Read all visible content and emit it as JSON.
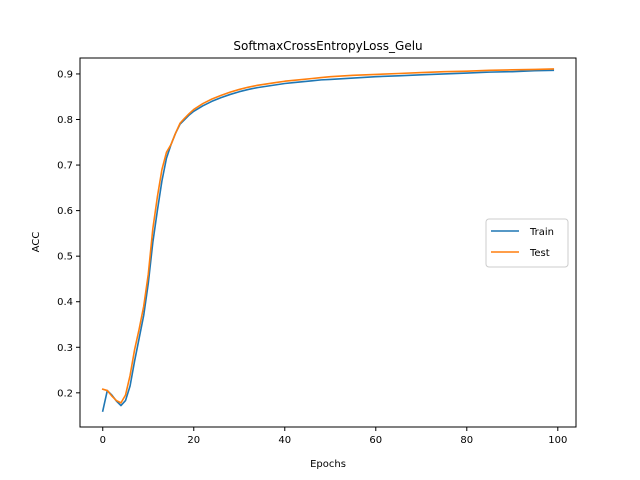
{
  "chart_data": {
    "type": "line",
    "title": "SoftmaxCrossEntropyLoss_Gelu",
    "xlabel": "Epochs",
    "ylabel": "ACC",
    "xlim": [
      -5,
      104
    ],
    "ylim": [
      0.125,
      0.935
    ],
    "xticks": [
      0,
      20,
      40,
      60,
      80,
      100
    ],
    "yticks": [
      0.2,
      0.3,
      0.4,
      0.5,
      0.6,
      0.7,
      0.8,
      0.9
    ],
    "legend_position": "center-right",
    "grid": false,
    "series": [
      {
        "name": "Train",
        "color": "#1f77b4",
        "x": [
          0,
          1,
          2,
          3,
          4,
          5,
          6,
          7,
          8,
          9,
          10,
          11,
          12,
          13,
          14,
          15,
          16,
          17,
          18,
          19,
          20,
          22,
          24,
          26,
          28,
          30,
          32,
          34,
          36,
          38,
          40,
          42,
          44,
          46,
          48,
          50,
          55,
          60,
          65,
          70,
          75,
          80,
          85,
          90,
          95,
          99
        ],
        "values": [
          0.16,
          0.205,
          0.195,
          0.182,
          0.172,
          0.183,
          0.215,
          0.27,
          0.32,
          0.37,
          0.44,
          0.53,
          0.6,
          0.665,
          0.715,
          0.745,
          0.77,
          0.79,
          0.8,
          0.81,
          0.818,
          0.83,
          0.84,
          0.848,
          0.855,
          0.861,
          0.866,
          0.87,
          0.873,
          0.876,
          0.879,
          0.881,
          0.883,
          0.885,
          0.887,
          0.888,
          0.891,
          0.894,
          0.896,
          0.898,
          0.9,
          0.902,
          0.904,
          0.905,
          0.907,
          0.908
        ]
      },
      {
        "name": "Test",
        "color": "#ff7f0e",
        "x": [
          0,
          1,
          2,
          3,
          4,
          5,
          6,
          7,
          8,
          9,
          10,
          11,
          12,
          13,
          14,
          15,
          16,
          17,
          18,
          19,
          20,
          22,
          24,
          26,
          28,
          30,
          32,
          34,
          36,
          38,
          40,
          42,
          44,
          46,
          48,
          50,
          55,
          60,
          65,
          70,
          75,
          80,
          85,
          90,
          95,
          99
        ],
        "values": [
          0.208,
          0.205,
          0.193,
          0.183,
          0.178,
          0.195,
          0.238,
          0.295,
          0.34,
          0.39,
          0.46,
          0.56,
          0.63,
          0.69,
          0.728,
          0.745,
          0.77,
          0.792,
          0.803,
          0.813,
          0.822,
          0.835,
          0.845,
          0.853,
          0.86,
          0.866,
          0.871,
          0.875,
          0.878,
          0.881,
          0.884,
          0.886,
          0.888,
          0.89,
          0.892,
          0.894,
          0.897,
          0.899,
          0.901,
          0.903,
          0.905,
          0.906,
          0.908,
          0.909,
          0.91,
          0.911
        ]
      }
    ]
  }
}
